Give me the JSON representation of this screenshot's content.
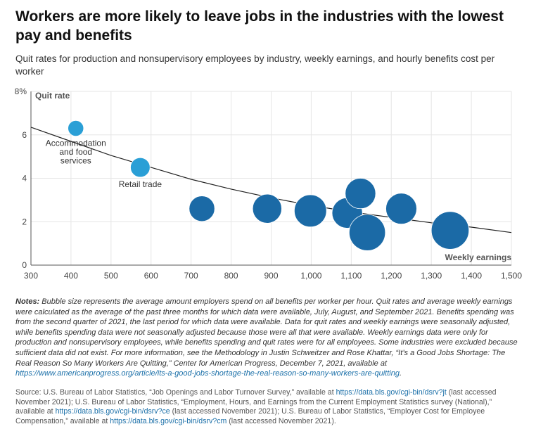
{
  "title": "Workers are more likely to leave jobs in the industries with the lowest pay and benefits",
  "subtitle": "Quit rates for production and nonsupervisory employees by industry, weekly earnings, and hourly benefits cost per worker",
  "notes": {
    "label": "Notes:",
    "text": "Bubble size represents the average amount employers spend on all benefits per worker per hour. Quit rates and average weekly earnings were calculated as the average of the past three months for which data were available, July, August, and September 2021. Benefits spending was from the second quarter of 2021, the last period for which data were available. Data for quit rates and weekly earnings were seasonally adjusted, while benefits spending data were not seasonally adjusted because those were all that were available. Weekly earnings data were only for production and nonsupervisory employees, while benefits spending and quit rates were for all employees. Some industries were excluded because sufficient data did not exist. For more information, see the Methodology in Justin Schweitzer and Rose Khattar, “It’s a Good Jobs Shortage: The Real Reason So Many Workers Are Quitting,” Center for American Progress, December 7, 2021, available at",
    "link": "https://www.americanprogress.org/article/its-a-good-jobs-shortage-the-real-reason-so-many-workers-are-quitting",
    "end": "."
  },
  "source": {
    "part1": "Source: U.S. Bureau of Labor Statistics, “Job Openings and Labor Turnover Survey,” available at",
    "link1": "https://data.bls.gov/cgi-bin/dsrv?jt",
    "part2": "(last accessed November 2021); U.S. Bureau of Labor Statistics, “Employment, Hours, and Earnings from the Current Employment Statistics survey (National),” available at",
    "link2": "https://data.bls.gov/cgi-bin/dsrv?ce",
    "part3": "(last accessed November 2021); U.S. Bureau of Labor Statistics, “Employer Cost for Employee Compensation,” available at",
    "link3": "https://data.bls.gov/cgi-bin/dsrv?cm",
    "part4": "(last accessed November 2021)."
  },
  "chart_data": {
    "type": "scatter",
    "xlabel": "Weekly earnings",
    "ylabel": "Quit rate",
    "xlim": [
      300,
      1500
    ],
    "ylim": [
      0,
      8
    ],
    "x_ticks": [
      300,
      400,
      500,
      600,
      700,
      800,
      900,
      1000,
      1100,
      1200,
      1300,
      1400,
      1500
    ],
    "x_tick_labels": [
      "300",
      "400",
      "500",
      "600",
      "700",
      "800",
      "900",
      "1,000",
      "1,100",
      "1,200",
      "1,300",
      "1,400",
      "1,500"
    ],
    "y_ticks": [
      0,
      2,
      4,
      6,
      8
    ],
    "y_tick_labels": [
      "0",
      "2",
      "4",
      "6",
      "8%"
    ],
    "grid": true,
    "size_encoding": "average benefits cost per worker per hour",
    "points": [
      {
        "x": 412,
        "y": 6.3,
        "size": 4.5,
        "label": "Accommodation and food services",
        "label_lines": [
          "Accommodation",
          "and food",
          "services"
        ],
        "color": "#2a9fd6"
      },
      {
        "x": 573,
        "y": 4.5,
        "size": 7.0,
        "label": "Retail trade",
        "label_lines": [
          "Retail trade"
        ],
        "color": "#2a9fd6"
      },
      {
        "x": 727,
        "y": 2.6,
        "size": 12.0,
        "label": "",
        "label_lines": [],
        "color": "#1b6aa6"
      },
      {
        "x": 890,
        "y": 2.6,
        "size": 15.5,
        "label": "",
        "label_lines": [],
        "color": "#1b6aa6"
      },
      {
        "x": 998,
        "y": 2.5,
        "size": 19.0,
        "label": "",
        "label_lines": [],
        "color": "#1b6aa6"
      },
      {
        "x": 1090,
        "y": 2.4,
        "size": 17.0,
        "label": "",
        "label_lines": [],
        "color": "#1b6aa6"
      },
      {
        "x": 1123,
        "y": 3.3,
        "size": 17.0,
        "label": "",
        "label_lines": [],
        "color": "#1b6aa6"
      },
      {
        "x": 1140,
        "y": 1.5,
        "size": 24.0,
        "label": "",
        "label_lines": [],
        "color": "#1b6aa6"
      },
      {
        "x": 1225,
        "y": 2.6,
        "size": 17.5,
        "label": "",
        "label_lines": [],
        "color": "#1b6aa6"
      },
      {
        "x": 1347,
        "y": 1.6,
        "size": 26.0,
        "label": "",
        "label_lines": [],
        "color": "#1b6aa6"
      }
    ],
    "trendline": {
      "type": "exponential",
      "x": [
        300,
        400,
        500,
        600,
        700,
        800,
        900,
        1000,
        1100,
        1200,
        1300,
        1400,
        1500
      ],
      "y": [
        6.35,
        5.7,
        5.05,
        4.5,
        3.95,
        3.5,
        3.1,
        2.75,
        2.45,
        2.2,
        1.95,
        1.75,
        1.5
      ]
    },
    "colors": {
      "light_bubble": "#2a9fd6",
      "dark_bubble": "#1b6aa6",
      "trendline": "#222222",
      "grid": "#e6e6e6"
    }
  }
}
